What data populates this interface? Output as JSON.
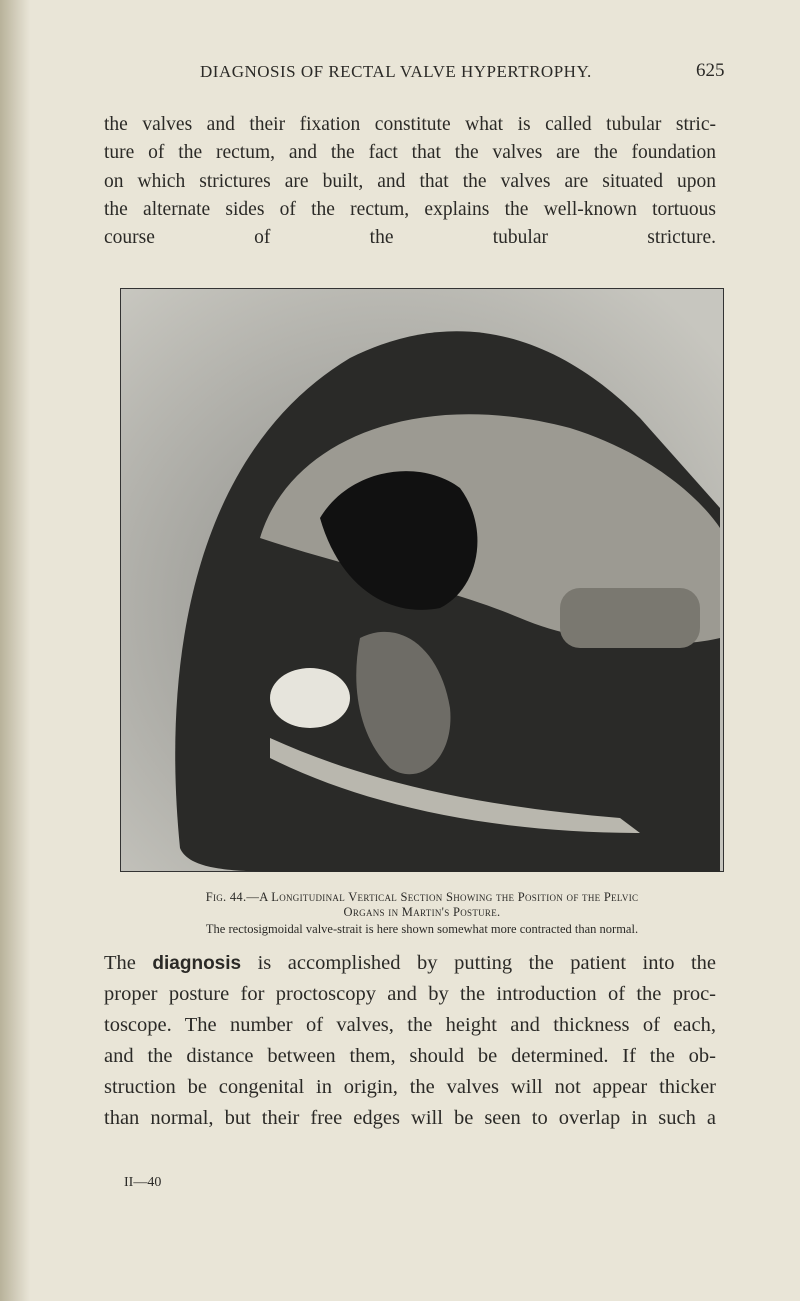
{
  "header": {
    "title": "DIAGNOSIS OF RECTAL VALVE HYPERTROPHY.",
    "page_number": "625"
  },
  "paragraphs": [
    {
      "lines": [
        "the valves and their fixation constitute what is called tubular stric-",
        "ture of the rectum, and the fact that the valves are the foundation",
        "on which strictures are built, and that the valves are situated upon",
        "the alternate sides of the rectum, explains the well-known tortuous",
        "course of the tubular stricture."
      ]
    },
    {
      "lines": [
        [
          "The ",
          "diagnosis",
          " is accomplished by putting the patient into the"
        ],
        [
          "proper posture for proctoscopy and by the introduction of the proc-"
        ],
        [
          "toscope. The number of valves, the height and thickness of each,"
        ],
        [
          "and the distance between them, should be determined. If the ob-"
        ],
        [
          "struction be congenital in origin, the valves will not appear thicker"
        ],
        [
          "than normal, but their free edges will be seen to overlap in such a"
        ]
      ]
    }
  ],
  "figure": {
    "caption_lines": [
      "Fig. 44.—A Longitudinal Vertical Section Showing the Position of the Pelvic",
      "Organs in Martin's Posture."
    ],
    "caption_note": "The rectosigmoidal valve-strait is here shown somewhat more contracted than normal."
  },
  "footer": {
    "signature": "II—40"
  }
}
